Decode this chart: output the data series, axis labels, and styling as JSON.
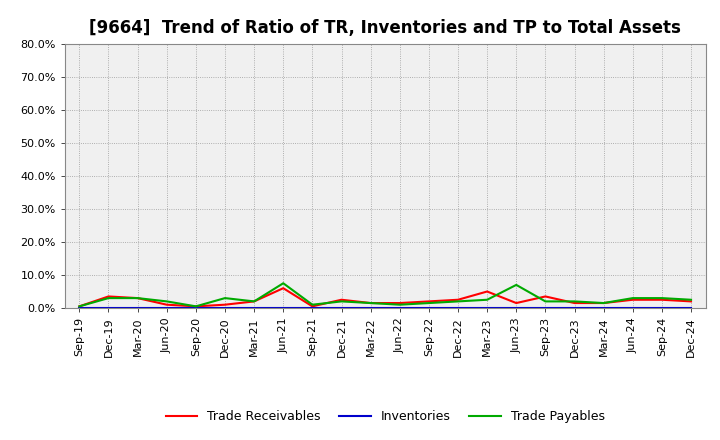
{
  "title": "[9664]  Trend of Ratio of TR, Inventories and TP to Total Assets",
  "x_labels": [
    "Sep-19",
    "Dec-19",
    "Mar-20",
    "Jun-20",
    "Sep-20",
    "Dec-20",
    "Mar-21",
    "Jun-21",
    "Sep-21",
    "Dec-21",
    "Mar-22",
    "Jun-22",
    "Sep-22",
    "Dec-22",
    "Mar-23",
    "Jun-23",
    "Sep-23",
    "Dec-23",
    "Mar-24",
    "Jun-24",
    "Sep-24",
    "Dec-24"
  ],
  "trade_receivables": [
    0.005,
    0.035,
    0.03,
    0.01,
    0.005,
    0.01,
    0.02,
    0.06,
    0.005,
    0.025,
    0.015,
    0.015,
    0.02,
    0.025,
    0.05,
    0.015,
    0.035,
    0.015,
    0.015,
    0.025,
    0.025,
    0.02
  ],
  "inventories": [
    0.001,
    0.001,
    0.001,
    0.001,
    0.001,
    0.001,
    0.001,
    0.001,
    0.001,
    0.001,
    0.001,
    0.001,
    0.001,
    0.001,
    0.001,
    0.001,
    0.001,
    0.001,
    0.001,
    0.001,
    0.001,
    0.001
  ],
  "trade_payables": [
    0.005,
    0.03,
    0.03,
    0.02,
    0.005,
    0.03,
    0.02,
    0.075,
    0.01,
    0.02,
    0.015,
    0.01,
    0.015,
    0.02,
    0.025,
    0.07,
    0.02,
    0.02,
    0.015,
    0.03,
    0.03,
    0.025
  ],
  "line_colors": {
    "trade_receivables": "#ff0000",
    "inventories": "#0000cc",
    "trade_payables": "#00aa00"
  },
  "legend_labels": {
    "trade_receivables": "Trade Receivables",
    "inventories": "Inventories",
    "trade_payables": "Trade Payables"
  },
  "ylim": [
    0.0,
    0.8
  ],
  "yticks": [
    0.0,
    0.1,
    0.2,
    0.3,
    0.4,
    0.5,
    0.6,
    0.7,
    0.8
  ],
  "background_color": "#ffffff",
  "plot_bg_color": "#f0f0f0",
  "grid_color": "#999999",
  "title_fontsize": 12,
  "tick_fontsize": 8,
  "legend_fontsize": 9,
  "linewidth": 1.5
}
